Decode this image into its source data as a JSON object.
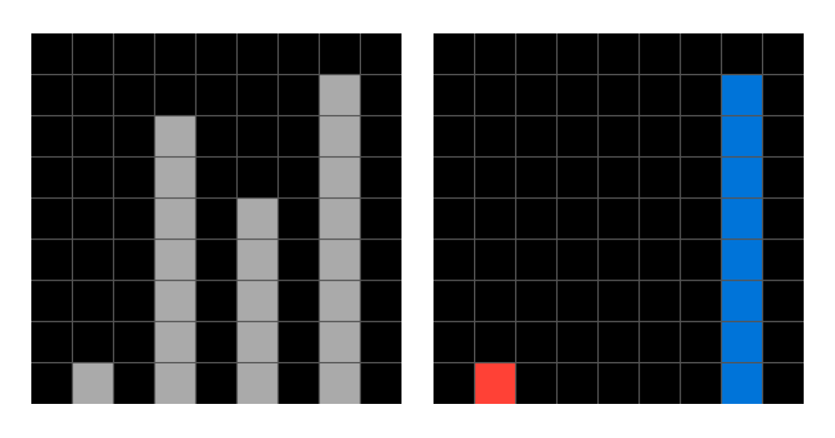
{
  "colors": {
    "background": "#000000",
    "grid_line": "#555555",
    "page": "#ffffff",
    "palette": {
      "0": "#000000",
      "2": "#FF4136",
      "5": "#AAAAAA",
      "1": "#0074D9"
    }
  },
  "grids": [
    {
      "name": "input-grid",
      "rows": 9,
      "cols": 9,
      "cells": [
        [
          0,
          0,
          0,
          0,
          0,
          0,
          0,
          0,
          0
        ],
        [
          0,
          0,
          0,
          0,
          0,
          0,
          0,
          5,
          0
        ],
        [
          0,
          0,
          0,
          5,
          0,
          0,
          0,
          5,
          0
        ],
        [
          0,
          0,
          0,
          5,
          0,
          0,
          0,
          5,
          0
        ],
        [
          0,
          0,
          0,
          5,
          0,
          5,
          0,
          5,
          0
        ],
        [
          0,
          0,
          0,
          5,
          0,
          5,
          0,
          5,
          0
        ],
        [
          0,
          0,
          0,
          5,
          0,
          5,
          0,
          5,
          0
        ],
        [
          0,
          0,
          0,
          5,
          0,
          5,
          0,
          5,
          0
        ],
        [
          0,
          5,
          0,
          5,
          0,
          5,
          0,
          5,
          0
        ]
      ]
    },
    {
      "name": "output-grid",
      "rows": 9,
      "cols": 9,
      "cells": [
        [
          0,
          0,
          0,
          0,
          0,
          0,
          0,
          0,
          0
        ],
        [
          0,
          0,
          0,
          0,
          0,
          0,
          0,
          1,
          0
        ],
        [
          0,
          0,
          0,
          0,
          0,
          0,
          0,
          1,
          0
        ],
        [
          0,
          0,
          0,
          0,
          0,
          0,
          0,
          1,
          0
        ],
        [
          0,
          0,
          0,
          0,
          0,
          0,
          0,
          1,
          0
        ],
        [
          0,
          0,
          0,
          0,
          0,
          0,
          0,
          1,
          0
        ],
        [
          0,
          0,
          0,
          0,
          0,
          0,
          0,
          1,
          0
        ],
        [
          0,
          0,
          0,
          0,
          0,
          0,
          0,
          1,
          0
        ],
        [
          0,
          2,
          0,
          0,
          0,
          0,
          0,
          1,
          0
        ]
      ]
    }
  ]
}
